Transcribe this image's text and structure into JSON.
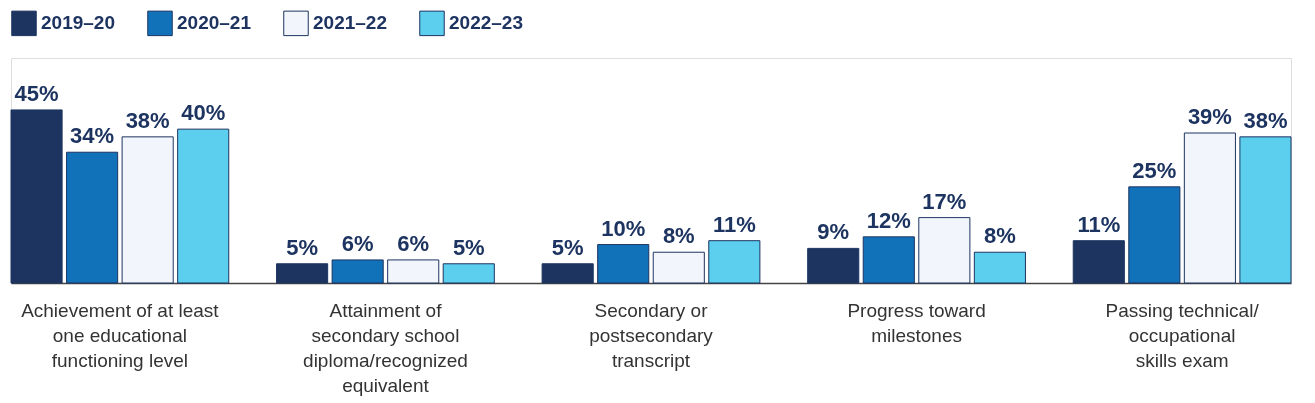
{
  "chart_data": {
    "type": "bar",
    "categories": [
      "Achievement of at least\none educational\nfunctioning level",
      "Attainment of\nsecondary school\ndiploma/recognized\nequivalent",
      "Secondary or\npostsecondary\ntranscript",
      "Progress toward\nmilestones",
      "Passing technical/\noccupational\nskills exam"
    ],
    "series": [
      {
        "name": "2019–20",
        "color": "#1d3461",
        "values": [
          45,
          5,
          5,
          9,
          11
        ],
        "value_labels": [
          "45%",
          "5%",
          "5%",
          "9%",
          "11%"
        ]
      },
      {
        "name": "2020–21",
        "color": "#1172ba",
        "values": [
          34,
          6,
          10,
          12,
          25
        ],
        "value_labels": [
          "34%",
          "6%",
          "10%",
          "12%",
          "25%"
        ]
      },
      {
        "name": "2021–22",
        "color": "#f2f5fb",
        "values": [
          38,
          6,
          8,
          17,
          39
        ],
        "value_labels": [
          "38%",
          "6%",
          "8%",
          "17%",
          "39%"
        ]
      },
      {
        "name": "2022–23",
        "color": "#5ccfee",
        "values": [
          40,
          5,
          11,
          8,
          38
        ],
        "value_labels": [
          "40%",
          "5%",
          "11%",
          "8%",
          "38%"
        ]
      }
    ],
    "legend": "top",
    "grid": false
  }
}
